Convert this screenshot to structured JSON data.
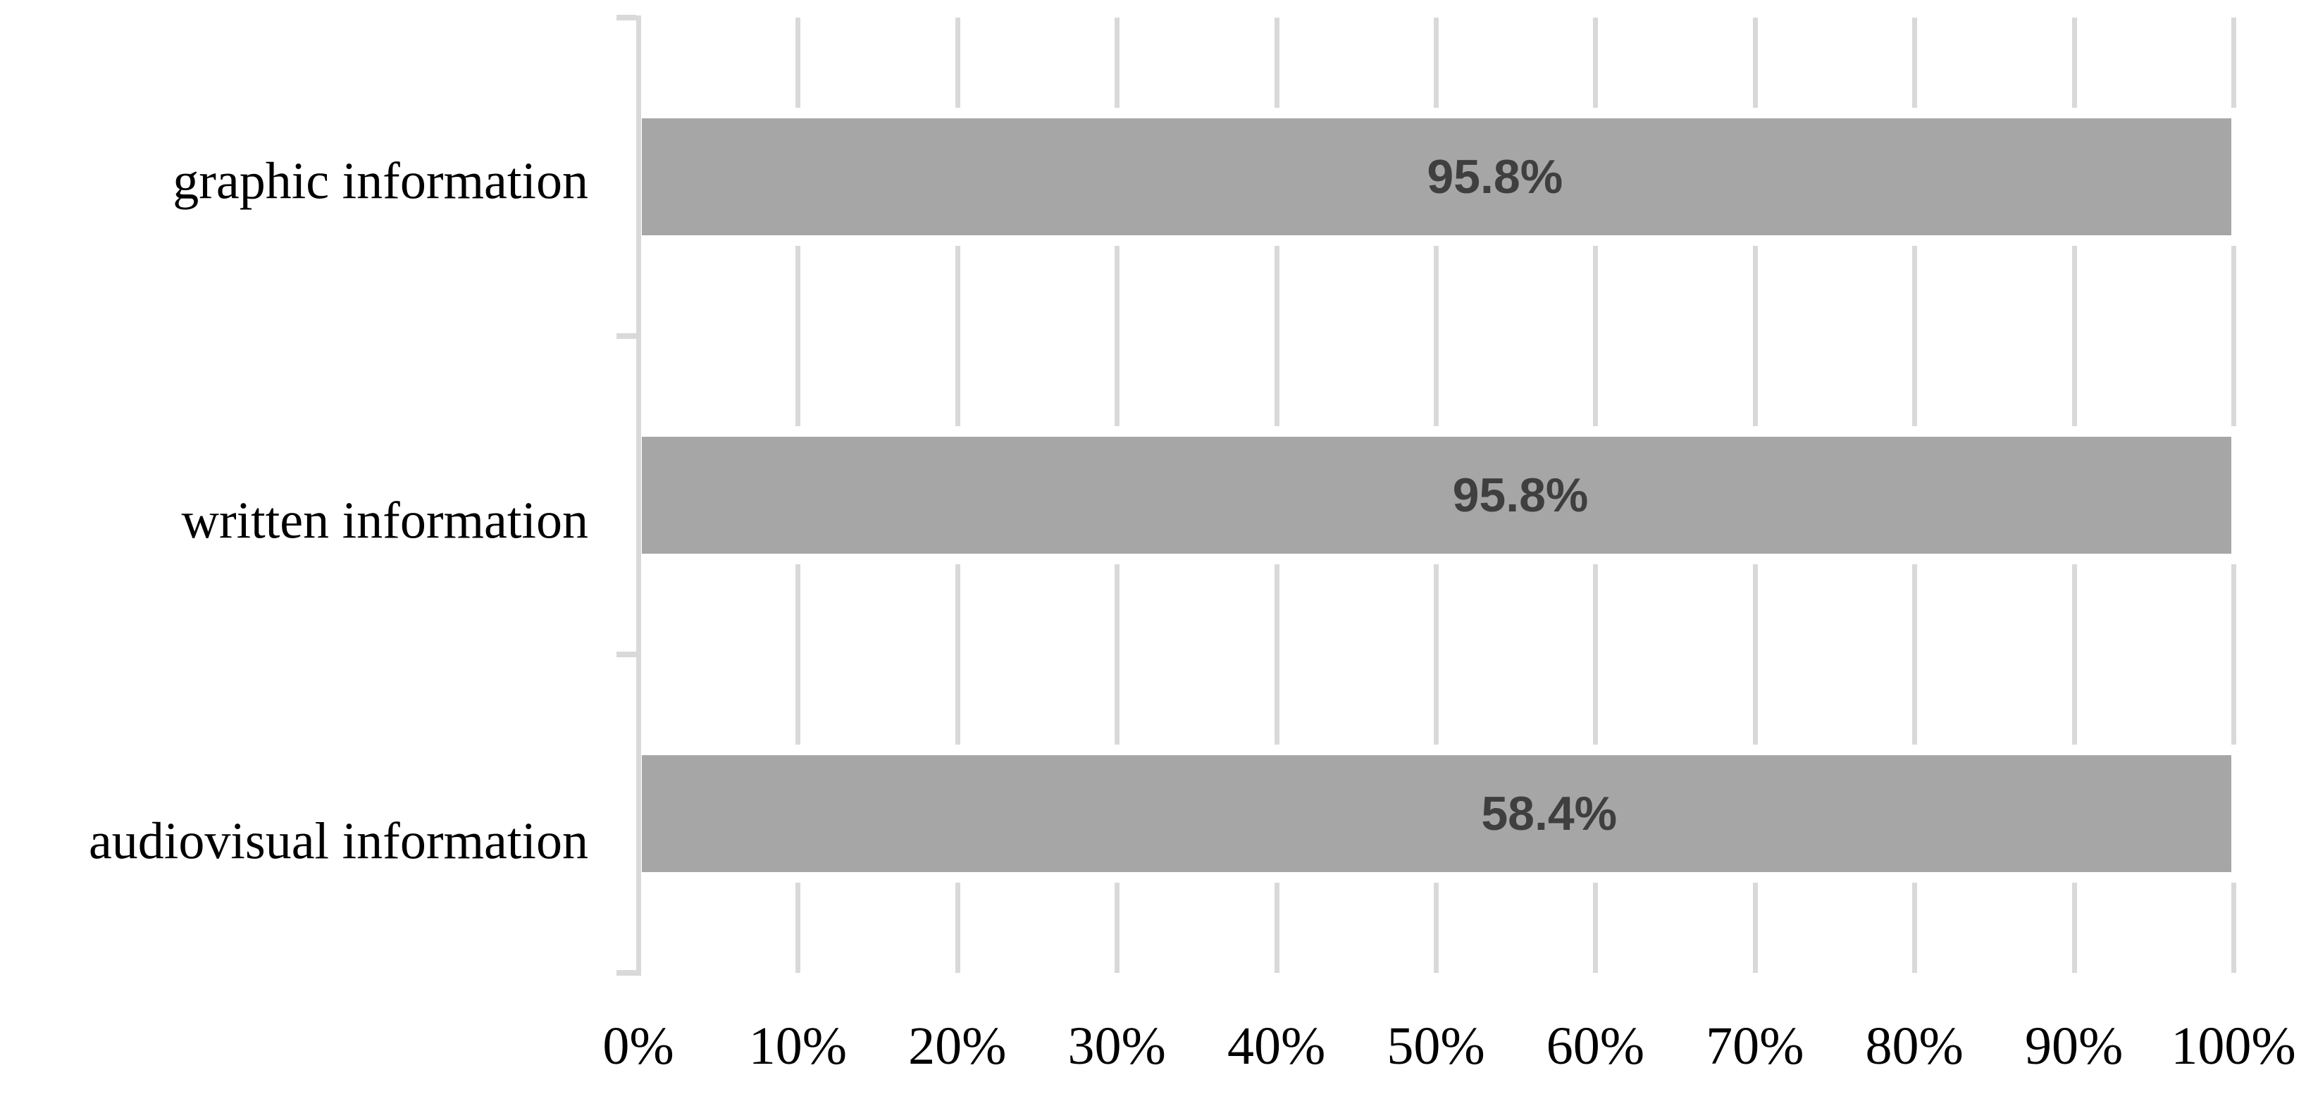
{
  "chart_data": {
    "type": "bar",
    "orientation": "horizontal",
    "title": "",
    "xlabel": "",
    "ylabel": "",
    "xlim": [
      0,
      100
    ],
    "x_tick_labels": [
      "0%",
      "10%",
      "20%",
      "30%",
      "40%",
      "50%",
      "60%",
      "70%",
      "80%",
      "90%",
      "100%"
    ],
    "grid": "vertical-gridlines-on",
    "legend": "none",
    "bars_drawn_full_width": true,
    "categories": [
      "graphic information",
      "written information",
      "audiovisual information"
    ],
    "values": [
      95.8,
      95.8,
      58.4
    ],
    "bars": [
      {
        "category": "graphic information",
        "value": 95.8,
        "label": "95.8%"
      },
      {
        "category": "written information",
        "value": 95.8,
        "label": "95.8%"
      },
      {
        "category": "audiovisual information",
        "value": 58.4,
        "label": "58.4%"
      }
    ],
    "colors": {
      "bar_fill": "#a6a6a6",
      "gridline": "#d9d9d9",
      "axis_line": "#d9d9d9",
      "value_label": "#3f3f3f",
      "axis_text": "#000000",
      "background": "#ffffff"
    }
  }
}
